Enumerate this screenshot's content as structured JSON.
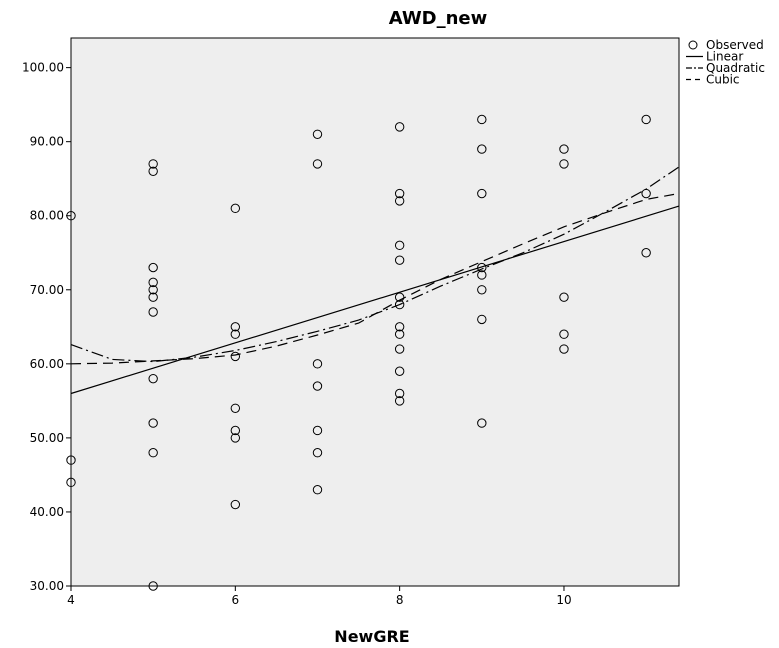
{
  "chart_data": {
    "type": "scatter",
    "title": "AWD_new",
    "xlabel": "NewGRE",
    "ylabel": "",
    "xlim": [
      4,
      11.4
    ],
    "ylim": [
      30,
      104
    ],
    "x_ticks": [
      4,
      6,
      8,
      10
    ],
    "x_tick_labels": [
      "4",
      "6",
      "8",
      "10"
    ],
    "y_ticks": [
      30,
      40,
      50,
      60,
      70,
      80,
      90,
      100
    ],
    "y_tick_labels": [
      "30.00",
      "40.00",
      "50.00",
      "60.00",
      "70.00",
      "80.00",
      "90.00",
      "100.00"
    ],
    "grid": false,
    "plot_background": "#eeeeee",
    "legend_position": "top-right",
    "legend": [
      {
        "label": "Observed",
        "style": "circle"
      },
      {
        "label": "Linear",
        "style": "solid"
      },
      {
        "label": "Quadratic",
        "style": "dashdot"
      },
      {
        "label": "Cubic",
        "style": "dashed"
      }
    ],
    "observed": [
      {
        "x": 4,
        "y": 80
      },
      {
        "x": 4,
        "y": 47
      },
      {
        "x": 4,
        "y": 44
      },
      {
        "x": 5,
        "y": 87
      },
      {
        "x": 5,
        "y": 86
      },
      {
        "x": 5,
        "y": 73
      },
      {
        "x": 5,
        "y": 71
      },
      {
        "x": 5,
        "y": 70
      },
      {
        "x": 5,
        "y": 69
      },
      {
        "x": 5,
        "y": 67
      },
      {
        "x": 5,
        "y": 58
      },
      {
        "x": 5,
        "y": 52
      },
      {
        "x": 5,
        "y": 48
      },
      {
        "x": 5,
        "y": 30
      },
      {
        "x": 6,
        "y": 81
      },
      {
        "x": 6,
        "y": 65
      },
      {
        "x": 6,
        "y": 64
      },
      {
        "x": 6,
        "y": 61
      },
      {
        "x": 6,
        "y": 54
      },
      {
        "x": 6,
        "y": 51
      },
      {
        "x": 6,
        "y": 50
      },
      {
        "x": 6,
        "y": 41
      },
      {
        "x": 7,
        "y": 91
      },
      {
        "x": 7,
        "y": 87
      },
      {
        "x": 7,
        "y": 60
      },
      {
        "x": 7,
        "y": 57
      },
      {
        "x": 7,
        "y": 51
      },
      {
        "x": 7,
        "y": 48
      },
      {
        "x": 7,
        "y": 43
      },
      {
        "x": 8,
        "y": 92
      },
      {
        "x": 8,
        "y": 83
      },
      {
        "x": 8,
        "y": 82
      },
      {
        "x": 8,
        "y": 76
      },
      {
        "x": 8,
        "y": 74
      },
      {
        "x": 8,
        "y": 69
      },
      {
        "x": 8,
        "y": 68
      },
      {
        "x": 8,
        "y": 65
      },
      {
        "x": 8,
        "y": 64
      },
      {
        "x": 8,
        "y": 62
      },
      {
        "x": 8,
        "y": 59
      },
      {
        "x": 8,
        "y": 56
      },
      {
        "x": 8,
        "y": 55
      },
      {
        "x": 9,
        "y": 93
      },
      {
        "x": 9,
        "y": 89
      },
      {
        "x": 9,
        "y": 83
      },
      {
        "x": 9,
        "y": 73
      },
      {
        "x": 9,
        "y": 72
      },
      {
        "x": 9,
        "y": 70
      },
      {
        "x": 9,
        "y": 66
      },
      {
        "x": 9,
        "y": 52
      },
      {
        "x": 10,
        "y": 89
      },
      {
        "x": 10,
        "y": 87
      },
      {
        "x": 10,
        "y": 69
      },
      {
        "x": 10,
        "y": 64
      },
      {
        "x": 10,
        "y": 62
      },
      {
        "x": 11,
        "y": 93
      },
      {
        "x": 11,
        "y": 83
      },
      {
        "x": 11,
        "y": 75
      }
    ],
    "fit_lines": {
      "linear": {
        "x": [
          4,
          11.4
        ],
        "y": [
          56.0,
          81.3
        ]
      },
      "quadratic": {
        "x": [
          4,
          4.5,
          5,
          5.5,
          6,
          6.5,
          7,
          7.5,
          8,
          8.5,
          9,
          9.5,
          10,
          10.5,
          11,
          11.4
        ],
        "y": [
          62.6,
          60.6,
          60.3,
          60.9,
          61.8,
          63.0,
          64.4,
          65.9,
          68.0,
          70.5,
          72.8,
          75.0,
          77.5,
          80.5,
          83.6,
          86.6
        ]
      },
      "cubic": {
        "x": [
          4,
          4.5,
          5,
          5.5,
          6,
          6.5,
          7,
          7.5,
          8,
          8.5,
          9,
          9.5,
          10,
          10.5,
          11,
          11.4
        ],
        "y": [
          60.0,
          60.1,
          60.4,
          60.7,
          61.2,
          62.4,
          63.9,
          65.5,
          68.6,
          71.4,
          73.8,
          76.2,
          78.5,
          80.4,
          82.2,
          83.0
        ]
      }
    }
  }
}
